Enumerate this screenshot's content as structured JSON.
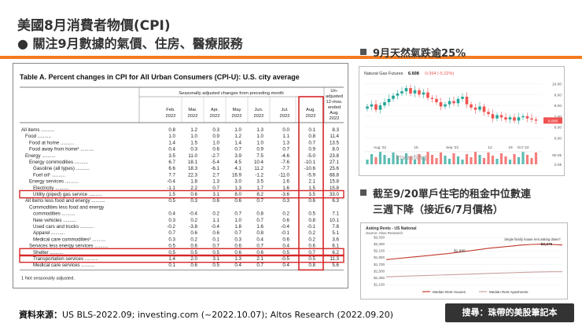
{
  "header": {
    "title": "美國8月消費者物價(CPI)",
    "bullet": "●",
    "subtitle": "關注9月數據的氣價、住房、醫療服務"
  },
  "cpi_table": {
    "title": "Table A. Percent changes in CPI for All Urban Consumers (CPI-U): U.S. city average",
    "group_header": "Seasonally adjusted changes from preceding month",
    "unadj_header": [
      "Un-",
      "adjusted",
      "12-mos.",
      "ended",
      "Aug.",
      "2022"
    ],
    "columns": [
      {
        "m": "Feb.",
        "y": "2022"
      },
      {
        "m": "Mar.",
        "y": "2022"
      },
      {
        "m": "Apr.",
        "y": "2022"
      },
      {
        "m": "May",
        "y": "2022"
      },
      {
        "m": "Jun.",
        "y": "2022"
      },
      {
        "m": "Jul.",
        "y": "2022"
      },
      {
        "m": "Aug.",
        "y": "2022"
      }
    ],
    "rows": [
      {
        "label": "All items",
        "indent": 0,
        "vals": [
          "0.8",
          "1.2",
          "0.3",
          "1.0",
          "1.3",
          "0.0",
          "0.1",
          "8.3"
        ]
      },
      {
        "label": "Food",
        "indent": 1,
        "vals": [
          "1.0",
          "1.0",
          "0.9",
          "1.2",
          "1.0",
          "1.1",
          "0.8",
          "11.4"
        ]
      },
      {
        "label": "Food at home",
        "indent": 2,
        "vals": [
          "1.4",
          "1.5",
          "1.0",
          "1.4",
          "1.0",
          "1.3",
          "0.7",
          "13.5"
        ]
      },
      {
        "label": "Food away from home¹",
        "indent": 2,
        "vals": [
          "0.4",
          "0.3",
          "0.6",
          "0.7",
          "0.9",
          "0.7",
          "0.9",
          "8.0"
        ]
      },
      {
        "label": "Energy",
        "indent": 1,
        "vals": [
          "3.5",
          "11.0",
          "-2.7",
          "3.9",
          "7.5",
          "-4.6",
          "-5.0",
          "23.8"
        ]
      },
      {
        "label": "Energy commodities",
        "indent": 2,
        "vals": [
          "6.7",
          "18.1",
          "-5.4",
          "4.5",
          "10.4",
          "-7.6",
          "-10.1",
          "27.1"
        ]
      },
      {
        "label": "Gasoline (all types)",
        "indent": 3,
        "vals": [
          "6.6",
          "18.3",
          "-6.1",
          "4.1",
          "11.2",
          "-7.7",
          "-10.6",
          "25.6"
        ]
      },
      {
        "label": "Fuel oil¹",
        "indent": 3,
        "vals": [
          "7.7",
          "22.3",
          "2.7",
          "16.9",
          "-1.2",
          "-11.0",
          "-5.9",
          "68.8"
        ]
      },
      {
        "label": "Energy services",
        "indent": 2,
        "vals": [
          "-0.4",
          "1.8",
          "1.3",
          "3.0",
          "3.5",
          "1.6",
          "2.1",
          "15.8"
        ]
      },
      {
        "label": "Electricity",
        "indent": 3,
        "vals": [
          "-1.1",
          "2.2",
          "0.7",
          "1.3",
          "1.7",
          "1.6",
          "1.5",
          "15.8"
        ]
      },
      {
        "label": "Utility (piped) gas service",
        "indent": 3,
        "vals": [
          "1.5",
          "0.6",
          "3.1",
          "8.0",
          "8.2",
          "-3.6",
          "3.5",
          "33.0"
        ]
      },
      {
        "label": "All items less food and energy",
        "indent": 1,
        "vals": [
          "0.5",
          "0.3",
          "0.6",
          "0.6",
          "0.7",
          "0.3",
          "0.6",
          "6.3"
        ]
      },
      {
        "label": "Commodities less food and energy",
        "indent": 2,
        "vals": [
          "",
          "",
          "",
          "",
          "",
          "",
          "",
          ""
        ]
      },
      {
        "label": "commodities",
        "indent": 3,
        "vals": [
          "0.4",
          "-0.4",
          "0.2",
          "0.7",
          "0.8",
          "0.2",
          "0.5",
          "7.1"
        ]
      },
      {
        "label": "New vehicles",
        "indent": 3,
        "vals": [
          "0.3",
          "0.2",
          "1.1",
          "1.0",
          "0.7",
          "0.6",
          "0.8",
          "10.1"
        ]
      },
      {
        "label": "Used cars and trucks",
        "indent": 3,
        "vals": [
          "-0.2",
          "-3.8",
          "-0.4",
          "1.8",
          "1.6",
          "-0.4",
          "-0.1",
          "7.8"
        ]
      },
      {
        "label": "Apparel",
        "indent": 3,
        "vals": [
          "0.7",
          "0.6",
          "0.6",
          "0.7",
          "0.8",
          "-0.1",
          "0.2",
          "5.1"
        ]
      },
      {
        "label": "Medical care commodities¹",
        "indent": 3,
        "vals": [
          "0.3",
          "0.2",
          "0.1",
          "0.3",
          "0.4",
          "0.6",
          "0.2",
          "3.6"
        ]
      },
      {
        "label": "Services less energy services",
        "indent": 2,
        "vals": [
          "0.5",
          "0.6",
          "0.7",
          "0.6",
          "0.7",
          "0.4",
          "0.6",
          "6.1"
        ]
      },
      {
        "label": "Shelter",
        "indent": 3,
        "vals": [
          "0.5",
          "0.5",
          "0.5",
          "0.6",
          "0.6",
          "0.5",
          "0.7",
          "6.2"
        ]
      },
      {
        "label": "Transportation services",
        "indent": 3,
        "vals": [
          "1.4",
          "2.0",
          "3.1",
          "1.3",
          "2.1",
          "-0.5",
          "0.5",
          "11.3"
        ]
      },
      {
        "label": "Medical care services",
        "indent": 3,
        "vals": [
          "0.1",
          "0.6",
          "0.5",
          "0.4",
          "0.7",
          "0.4",
          "0.8",
          "5.6"
        ]
      }
    ],
    "footnote": "1  Not seasonally adjusted.",
    "highlight_color": "#d62728"
  },
  "natgas": {
    "heading": "9月天然氣跌逾25%",
    "chart_title": "Natural Gas Futures",
    "price": "6.608",
    "change": "-0.364 (-5.22%)",
    "last_label": "6.608",
    "y_ticks": [
      "10.00",
      "9.00",
      "8.00",
      "7.00",
      "6.00",
      "5.00"
    ],
    "x_ticks": [
      "Aug '22",
      "Sep '22",
      "Oct '22"
    ],
    "vol_ticks": [
      "60.0k",
      "0.0k"
    ],
    "day_ticks": [
      "15",
      "12",
      "19"
    ],
    "watermark": "Investing",
    "up_color": "#26a69a",
    "down_color": "#ef5350",
    "chart_data": {
      "type": "candlestick",
      "title": "Natural Gas Futures",
      "ylim": [
        4.6,
        10.4
      ],
      "close_approx": [
        7.9,
        8.1,
        7.6,
        8.0,
        8.3,
        8.6,
        8.9,
        9.1,
        9.3,
        9.6,
        9.1,
        9.4,
        9.0,
        9.2,
        8.7,
        8.6,
        8.3,
        7.9,
        8.1,
        8.4,
        8.2,
        8.6,
        8.8,
        8.1,
        7.8,
        7.6,
        7.9,
        7.4,
        7.2,
        6.8,
        7.1,
        6.9,
        6.7,
        6.9,
        6.6,
        6.9,
        7.0,
        6.8,
        6.7,
        6.6
      ]
    }
  },
  "rent": {
    "heading_line1": "截至9/20單戶住宅的租金中位數連",
    "heading_line2": "三週下降（接近6/7月價格）",
    "chart_title": "Asking Rents - US National",
    "chart_source": "Source: Altos Research",
    "annotation": "Single family house rent asking down?",
    "annotation_value": "$2,275",
    "mid_value": "$1,999",
    "y_ticks": [
      "$2,500",
      "$2,300",
      "$2,100",
      "$1,900",
      "$1,700",
      "$1,500",
      "$1,300",
      "$1,100"
    ],
    "legend": [
      "Median Rent Houses",
      "Median Rent Apartments"
    ],
    "chart_data": {
      "type": "line",
      "title": "Asking Rents - US National",
      "ylim": [
        1100,
        2500
      ],
      "series": [
        {
          "name": "Median Rent Houses",
          "values": [
            1840,
            1870,
            1900,
            1930,
            1960,
            1990,
            2020,
            2060,
            2100,
            2140,
            2180,
            2210,
            2240,
            2270,
            2290,
            2300,
            2290,
            2275
          ]
        },
        {
          "name": "Median Rent Apartments",
          "values": [
            1330,
            1340,
            1350,
            1360,
            1370,
            1380,
            1390,
            1400,
            1410,
            1420,
            1430,
            1440,
            1450,
            1460,
            1470,
            1475,
            1480,
            1480
          ]
        }
      ]
    }
  },
  "footer": {
    "label": "資料來源：",
    "text": "US BLS-2022.09; investing.com (~2022.10.07); Altos Research (2022.09.20)",
    "search": "搜尋：珠帶的美股筆記本"
  },
  "colors": {
    "accent": "#f47a1f",
    "dark": "#333333"
  }
}
